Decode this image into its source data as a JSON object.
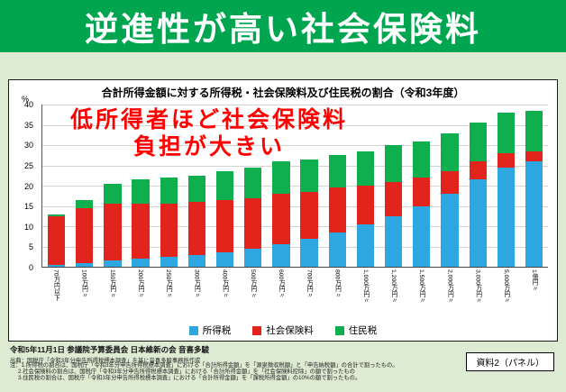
{
  "header": {
    "title": "逆進性が高い社会保険料",
    "bg_color": "#00A54F"
  },
  "colors": {
    "page_background": "#DDEBD3",
    "annotation_red": "#FF0000",
    "panel_background": "#FFFFFF"
  },
  "chart_data": {
    "type": "bar",
    "stacked": true,
    "title": "合計所得金額に対する所得税・社会保険料及び住民税の割合（令和3年度）",
    "ylabel": "%",
    "ylim": [
      0,
      40
    ],
    "ytick_step": 5,
    "grid": true,
    "legend_position": "bottom",
    "categories": [
      "70万円以下",
      "100万円〃",
      "150万円〃",
      "200万円〃",
      "250万円〃",
      "300万円〃",
      "400万円〃",
      "500万円〃",
      "600万円〃",
      "700万円〃",
      "800万円〃",
      "1,000万円〃",
      "1,200万円〃",
      "1,500万円〃",
      "2,000万円〃",
      "3,000万円〃",
      "5,000万円〃",
      "1億円〃"
    ],
    "series": [
      {
        "name": "所得税",
        "color": "#2EA7E0",
        "values": [
          0.5,
          1,
          1.5,
          2,
          2.5,
          3,
          3.5,
          4.5,
          5.5,
          7,
          8.5,
          10.5,
          12.5,
          15,
          18,
          21.5,
          24.5,
          26
        ]
      },
      {
        "name": "社会保険料",
        "color": "#E2241D",
        "values": [
          12,
          13.5,
          14,
          13.5,
          13,
          13,
          13,
          12.5,
          12.5,
          11.5,
          11,
          9.5,
          8.5,
          7,
          5.5,
          4.5,
          3.5,
          2.5
        ]
      },
      {
        "name": "住民税",
        "color": "#0FAE4E",
        "values": [
          0.5,
          2,
          5,
          6,
          6.5,
          6.5,
          7,
          7.5,
          8,
          8,
          8,
          8.5,
          9,
          9,
          9.5,
          9.5,
          10,
          10
        ]
      }
    ],
    "annotation": {
      "line1": "低所得者ほど社会保険料",
      "line2": "負担が大きい",
      "color": "#FF0000"
    }
  },
  "footer": {
    "attribution": "令和5年11月1日 参議院予算委員会 日本維新の会 音喜多駿",
    "source": "出典：国税庁「令和3年分申告所得税標本調査」を基に音喜多駿事務所作成",
    "notes": [
      "注：1.所得税の割合は、国税庁「令和3年分申告所得税標本調査」における「合計所得金額」を「源泉徴収税額」と「申告納税額」の合計で割ったもの。",
      "2.社会保険料の割合は、国税庁「令和3年分申告所得税標本調査」における「合計所得金額」を「社会保険料控除」の額で割ったもの",
      "3.住民税の割合は、国税庁「令和3年分申告所得税標本調査」における「合計所得金額」を「課税所得金額」の10%の額で割ったもの。"
    ],
    "doc_label": "資料2（パネル）"
  }
}
